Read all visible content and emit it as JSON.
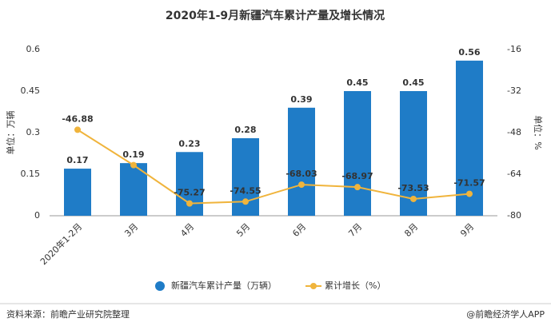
{
  "chart_data": {
    "type": "bar-line",
    "title": "2020年1-9月新疆汽车累计产量及增长情况",
    "ylabel": "单位：万辆",
    "y2label": "单位：%",
    "categories": [
      "2020年1-2月",
      "3月",
      "4月",
      "5月",
      "6月",
      "7月",
      "8月",
      "9月"
    ],
    "series": [
      {
        "name": "新疆汽车累计产量（万辆）",
        "type": "bar",
        "color": "#1f7cc7",
        "values": [
          0.17,
          0.19,
          0.23,
          0.28,
          0.39,
          0.45,
          0.45,
          0.56
        ]
      },
      {
        "name": "累计增长（%）",
        "type": "line",
        "axis": "y2",
        "color": "#f0b43c",
        "values": [
          -46.88,
          -60.5,
          -75.27,
          -74.55,
          -68.03,
          -68.97,
          -73.53,
          -71.57
        ],
        "value_labels": [
          "-46.88",
          null,
          "-75.27",
          "-74.55",
          "-68.03",
          "-68.97",
          "-73.53",
          "-71.57"
        ]
      }
    ],
    "ylim": [
      0,
      0.6
    ],
    "yticks": [
      0,
      0.15,
      0.3,
      0.45,
      0.6
    ],
    "y2lim": [
      -80,
      -16
    ],
    "y2ticks": [
      -80,
      -64,
      -48,
      -32,
      -16
    ],
    "source": "资料来源：前瞻产业研究院整理",
    "credit": "@前瞻经济学人APP"
  }
}
